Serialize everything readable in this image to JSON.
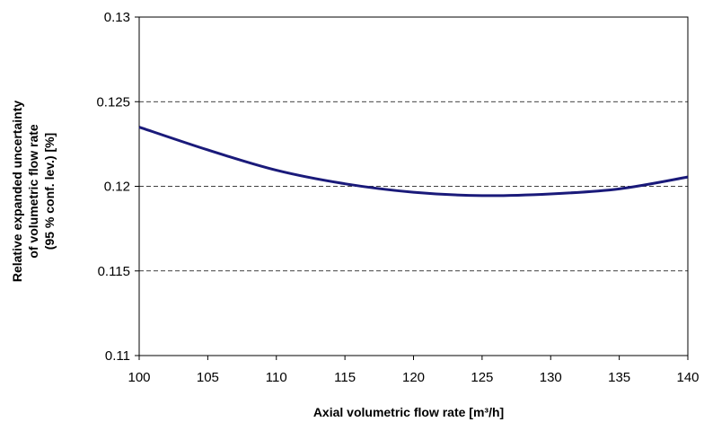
{
  "chart_data": {
    "type": "line",
    "xlabel": "Axial volumetric flow rate  [m³/h]",
    "ylabel_lines": [
      "Relative expanded uncertainty",
      "of volumetric flow rate",
      "(95 % conf. lev.)  [%]"
    ],
    "xlim": [
      100,
      140
    ],
    "ylim": [
      0.11,
      0.13
    ],
    "x_ticks": [
      100,
      105,
      110,
      115,
      120,
      125,
      130,
      135,
      140
    ],
    "x_tick_labels": [
      "100",
      "105",
      "110",
      "115",
      "120",
      "125",
      "130",
      "135",
      "140"
    ],
    "y_ticks": [
      0.11,
      0.115,
      0.12,
      0.125,
      0.13
    ],
    "y_tick_labels": [
      "0.11",
      "0.115",
      "0.12",
      "0.125",
      "0.13"
    ],
    "grid": "horizontal dashed",
    "series": [
      {
        "color": "#1a1a7a",
        "x": [
          100,
          105,
          110,
          115,
          120,
          125,
          130,
          135,
          140
        ],
        "y": [
          0.1235,
          0.12215,
          0.12095,
          0.12015,
          0.11965,
          0.11945,
          0.11955,
          0.11985,
          0.12055
        ]
      }
    ]
  }
}
